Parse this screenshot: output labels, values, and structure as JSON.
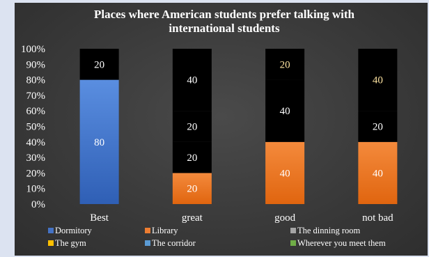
{
  "chart_data": {
    "type": "bar",
    "stacked": true,
    "percent_stacked": true,
    "title": "Places where American students prefer talking with international students",
    "title_lines": [
      "Places where American students prefer talking with",
      "international students"
    ],
    "categories": [
      "Best",
      "great",
      "good",
      "not bad"
    ],
    "y_tick_labels": [
      "0%",
      "10%",
      "20%",
      "30%",
      "40%",
      "50%",
      "60%",
      "70%",
      "80%",
      "90%",
      "100%"
    ],
    "ylim": [
      0,
      100
    ],
    "grid": false,
    "legend_position": "bottom",
    "series": [
      {
        "name": "Dormitory",
        "values": [
          80,
          null,
          null,
          null
        ],
        "color": "#4472c4"
      },
      {
        "name": "Library",
        "values": [
          null,
          20,
          40,
          40
        ],
        "color": "#ed7d31"
      },
      {
        "name": "The dinning room",
        "values": [
          null,
          20,
          40,
          20
        ],
        "color": "#a5a5a5"
      },
      {
        "name": "The gym",
        "values": [
          null,
          null,
          20,
          40
        ],
        "color": "#ffc000"
      },
      {
        "name": "The corridor",
        "values": [
          null,
          20,
          null,
          null
        ],
        "color": "#5b9bd5"
      },
      {
        "name": "Wherever you meet them",
        "values": [
          20,
          40,
          null,
          null
        ],
        "color": "#70ad47"
      }
    ]
  }
}
